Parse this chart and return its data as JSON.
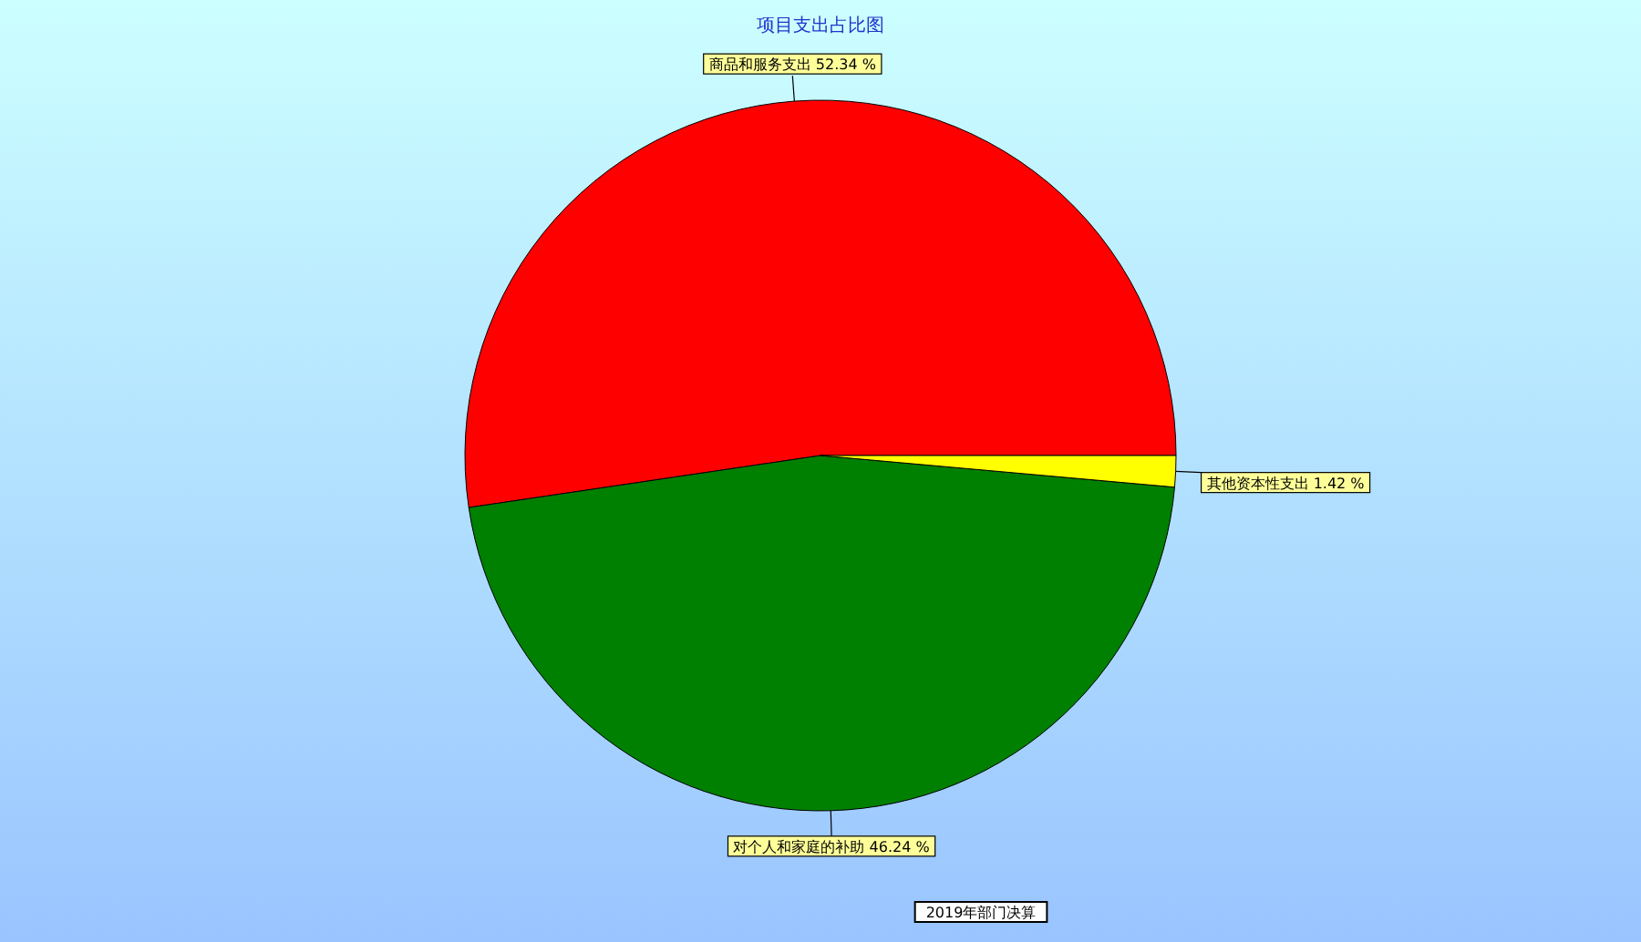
{
  "chart_data": {
    "type": "pie",
    "title": "项目支出占比图",
    "categories": [
      "商品和服务支出",
      "对个人和家庭的补助",
      "其他资本性支出"
    ],
    "values": [
      52.34,
      46.24,
      1.42
    ],
    "colors": [
      "#ff0000",
      "#008000",
      "#ffff00"
    ],
    "value_labels": [
      "52.34 %",
      "46.24 %",
      "1.42 %"
    ],
    "annotations": [
      "2019年部门决算"
    ],
    "legend": false
  }
}
